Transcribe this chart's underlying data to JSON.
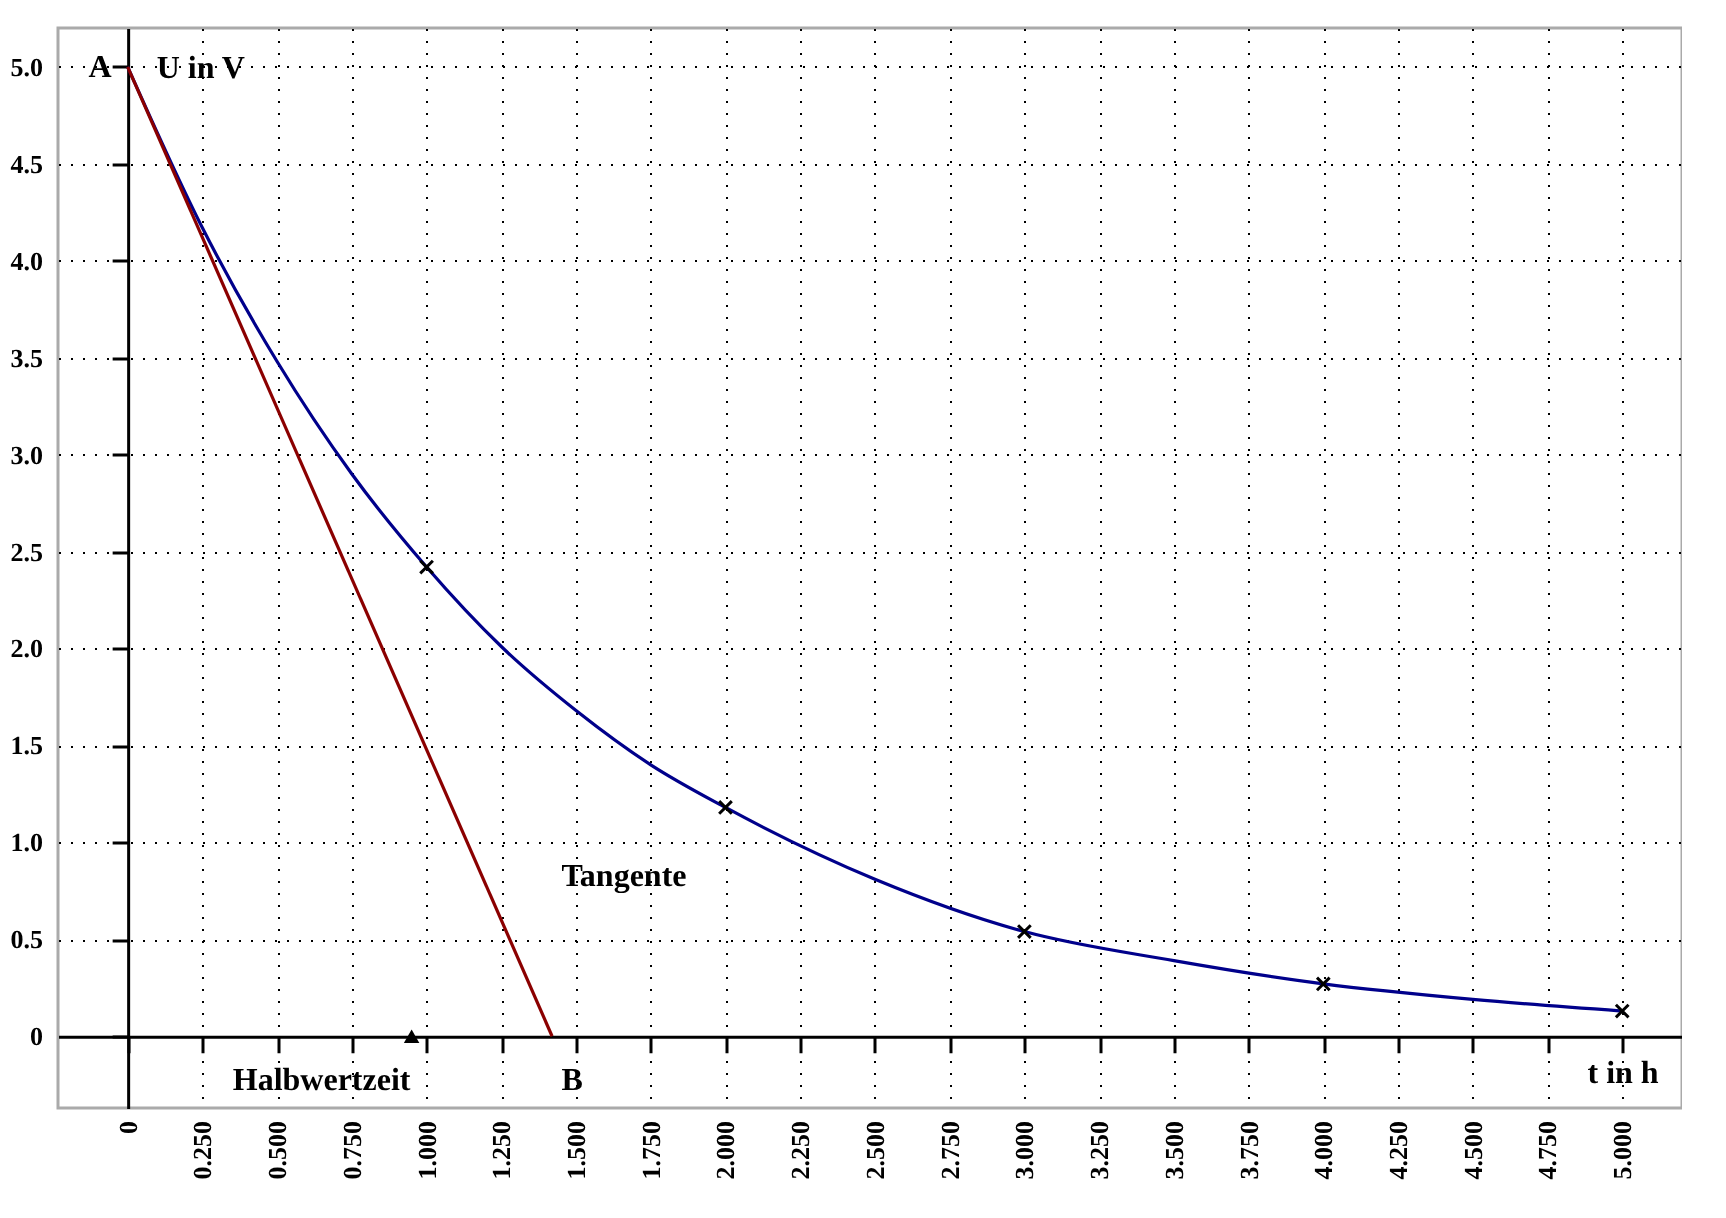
{
  "chart_data": {
    "type": "line",
    "xlabel": "t in h",
    "ylabel": "U in V",
    "xlim": [
      -0.233,
      5.2
    ],
    "ylim": [
      -0.37,
      5.2
    ],
    "xticks": [
      0,
      {
        "value": 0.25,
        "label": "0.250"
      },
      {
        "value": 0.5,
        "label": "0.500"
      },
      {
        "value": 0.75,
        "label": "0.750"
      },
      {
        "value": 1,
        "label": "1.000"
      },
      {
        "value": 1.25,
        "label": "1.250"
      },
      {
        "value": 1.5,
        "label": "1.500"
      },
      {
        "value": 1.75,
        "label": "1.750"
      },
      {
        "value": 2,
        "label": "2.000"
      },
      {
        "value": 2.25,
        "label": "2.250"
      },
      {
        "value": 2.5,
        "label": "2.500"
      },
      {
        "value": 2.75,
        "label": "2.750"
      },
      {
        "value": 3,
        "label": "3.000"
      },
      {
        "value": 3.25,
        "label": "3.250"
      },
      {
        "value": 3.5,
        "label": "3.500"
      },
      {
        "value": 3.75,
        "label": "3.750"
      },
      {
        "value": 4,
        "label": "4.000"
      },
      {
        "value": 4.25,
        "label": "4.250"
      },
      {
        "value": 4.5,
        "label": "4.500"
      },
      {
        "value": 4.75,
        "label": "4.750"
      },
      {
        "value": 5,
        "label": "5.000"
      }
    ],
    "yticks": [
      0,
      {
        "value": 0.5,
        "label": "0.5"
      },
      {
        "value": 1,
        "label": "1.0"
      },
      {
        "value": 1.5,
        "label": "1.5"
      },
      {
        "value": 2,
        "label": "2.0"
      },
      {
        "value": 2.5,
        "label": "2.5"
      },
      {
        "value": 3,
        "label": "3.0"
      },
      {
        "value": 3.5,
        "label": "3.5"
      },
      {
        "value": 4,
        "label": "4.0"
      },
      {
        "value": 4.5,
        "label": "4.5"
      },
      {
        "value": 5,
        "label": "5.0"
      }
    ],
    "grid": true,
    "series": [
      {
        "color": "#00008b",
        "x": [
          0,
          0.25,
          0.5,
          0.75,
          1,
          1.25,
          1.5,
          1.75,
          2,
          2.5,
          3,
          3.5,
          4,
          4.5,
          5
        ],
        "values": [
          5,
          4.17,
          3.48,
          2.9,
          2.42,
          2.01,
          1.68,
          1.4,
          1.18,
          0.81,
          0.54,
          0.39,
          0.27,
          0.19,
          0.13
        ]
      },
      {
        "type": "line",
        "color": "#8b0000",
        "x": [
          0,
          1.42
        ],
        "values": [
          5,
          0
        ]
      },
      {
        "type": "scatter",
        "marker": "cross",
        "color": "#000000",
        "x": [
          1,
          2,
          3,
          4,
          5
        ],
        "values": [
          2.42,
          1.18,
          0.54,
          0.27,
          0.13
        ]
      },
      {
        "type": "scatter",
        "marker": "triangle",
        "color": "#000000",
        "x": [
          0.95
        ],
        "values": [
          0
        ]
      }
    ],
    "annotations": [
      {
        "text": "A",
        "x": 0,
        "y": 5
      },
      {
        "text": "B",
        "x": 1.42,
        "y": 0
      },
      "Tangente",
      {
        "text": "Halbwertzeit",
        "x": 0.95,
        "y": 0
      }
    ]
  }
}
